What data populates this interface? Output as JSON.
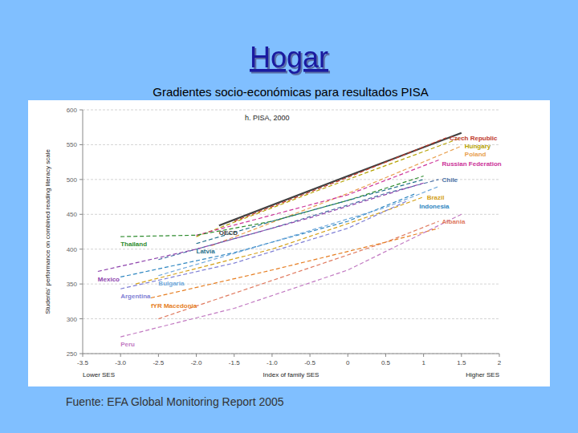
{
  "slide": {
    "title": "Hogar",
    "subtitle": "Gradientes socio-económicas para resultados PISA",
    "source": "Fuente: EFA Global Monitoring Report 2005"
  },
  "chart_data": {
    "type": "line",
    "title": "h. PISA, 2000",
    "x_label": "Index of family SES",
    "y_label": "Students' performance on combined reading literacy scale",
    "annotations": [
      "Lower SES",
      "Higher SES"
    ],
    "xlim": [
      -3.5,
      2
    ],
    "ylim": [
      250,
      600
    ],
    "xticks": [
      -3.5,
      {
        "value": -3,
        "label": "-3.0"
      },
      -2.5,
      {
        "value": -2,
        "label": "-2.0"
      },
      -1.5,
      {
        "value": -1,
        "label": "-1.0"
      },
      -0.5,
      0,
      0.5,
      1,
      1.5,
      2
    ],
    "yticks": [
      250,
      300,
      350,
      400,
      450,
      500,
      550,
      600
    ],
    "grid": true,
    "series": [
      {
        "name": "OECD",
        "color": "#404040",
        "line_style": "solid",
        "x": [
          -1.7,
          0,
          1.5
        ],
        "values": [
          434,
          505,
          567
        ]
      },
      {
        "name": "Czech Republic",
        "color": "#c0392b",
        "line_style": "dashed",
        "x": [
          -1.5,
          0,
          1.3
        ],
        "values": [
          440,
          503,
          560
        ]
      },
      {
        "name": "Hungary",
        "color": "#b5a200",
        "line_style": "dashed",
        "x": [
          -2,
          -0.5,
          1.5
        ],
        "values": [
          418,
          480,
          560
        ]
      },
      {
        "name": "Poland",
        "color": "#e8a050",
        "line_style": "dashed",
        "x": [
          -1.8,
          0,
          1.5
        ],
        "values": [
          405,
          480,
          548
        ]
      },
      {
        "name": "Russian Federation",
        "color": "#cc3399",
        "line_style": "dashed",
        "x": [
          -2,
          0,
          1.2
        ],
        "values": [
          420,
          478,
          528
        ]
      },
      {
        "name": "Chile",
        "color": "#4a6fa5",
        "line_style": "dashed",
        "x": [
          -2.5,
          -1,
          0.5,
          1.2
        ],
        "values": [
          385,
          430,
          480,
          500
        ]
      },
      {
        "name": "Brazil",
        "color": "#d4a017",
        "line_style": "dashed",
        "x": [
          -2.8,
          -1,
          0.5,
          1
        ],
        "values": [
          350,
          400,
          455,
          475
        ]
      },
      {
        "name": "Indonesia",
        "color": "#2e86c1",
        "line_style": "dashed",
        "x": [
          -3,
          -1.5,
          0,
          0.9
        ],
        "values": [
          360,
          395,
          440,
          480
        ]
      },
      {
        "name": "Albania",
        "color": "#e07a5f",
        "line_style": "dashed",
        "x": [
          -2.5,
          -1,
          0.5,
          1.2
        ],
        "values": [
          300,
          355,
          410,
          440
        ]
      },
      {
        "name": "Thailand",
        "color": "#2e8b2e",
        "line_style": "dashed",
        "x": [
          -3,
          -2,
          -1,
          0,
          1
        ],
        "values": [
          418,
          420,
          440,
          470,
          505
        ]
      },
      {
        "name": "Latvia",
        "color": "#1f6f8b",
        "line_style": "dashed",
        "x": [
          -2,
          -1,
          0,
          1
        ],
        "values": [
          408,
          440,
          470,
          500
        ]
      },
      {
        "name": "Mexico",
        "color": "#8e44ad",
        "line_style": "dashed",
        "x": [
          -3.3,
          -2,
          -0.5,
          1
        ],
        "values": [
          368,
          400,
          445,
          495
        ]
      },
      {
        "name": "Bulgaria",
        "color": "#6fa8dc",
        "line_style": "dashed",
        "x": [
          -2.5,
          -1,
          0.5,
          1.2
        ],
        "values": [
          362,
          410,
          460,
          490
        ]
      },
      {
        "name": "Argentina",
        "color": "#7f7fd5",
        "line_style": "dashed",
        "x": [
          -3,
          -1.5,
          0,
          0.8
        ],
        "values": [
          343,
          380,
          430,
          470
        ]
      },
      {
        "name": "fYR Macedonia",
        "color": "#e67e22",
        "line_style": "dashed",
        "x": [
          -2.6,
          -1,
          0.5,
          1.2
        ],
        "values": [
          330,
          370,
          410,
          430
        ]
      },
      {
        "name": "Peru",
        "color": "#c27ac2",
        "line_style": "dashed",
        "x": [
          -3,
          -1.5,
          0,
          1.5
        ],
        "values": [
          274,
          315,
          370,
          450
        ]
      }
    ]
  }
}
